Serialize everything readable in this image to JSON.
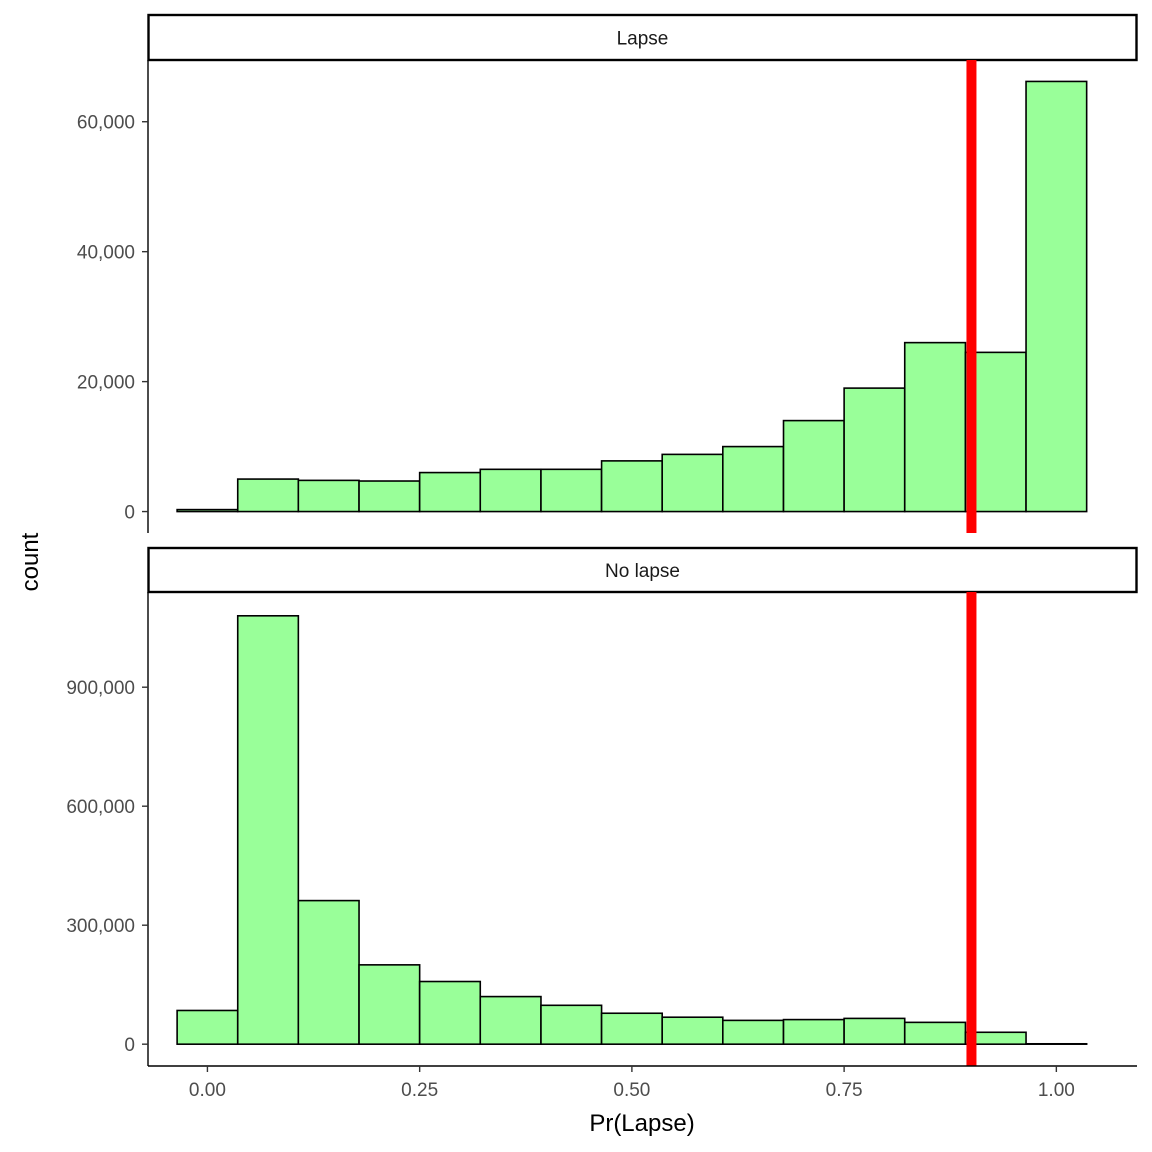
{
  "chart_data": {
    "type": "bar",
    "subtype": "faceted-histogram",
    "xlabel": "Pr(Lapse)",
    "ylabel": "count",
    "bar_fill": "#99ff99",
    "bar_stroke": "#000000",
    "threshold": {
      "x": 0.9,
      "color": "#ff0000"
    },
    "xlim": [
      -0.07,
      1.095
    ],
    "x_ticks": [
      0,
      0.25,
      0.5,
      0.75,
      1
    ],
    "x_tick_labels": [
      "0.00",
      "0.25",
      "0.50",
      "0.75",
      "1.00"
    ],
    "bin_edges": [
      -0.0357,
      0.0357,
      0.1071,
      0.1786,
      0.25,
      0.3214,
      0.3929,
      0.4643,
      0.5357,
      0.6071,
      0.6786,
      0.75,
      0.8214,
      0.8929,
      0.9643,
      1.0357
    ],
    "panels": [
      {
        "strip": "Lapse",
        "ylim": [
          -3300,
          69500
        ],
        "y_ticks": [
          0,
          20000,
          40000,
          60000
        ],
        "y_tick_labels": [
          "0",
          "20,000",
          "40,000",
          "60,000"
        ],
        "values": [
          300,
          5000,
          4800,
          4700,
          6000,
          6500,
          6500,
          7800,
          8800,
          10000,
          14000,
          19000,
          26000,
          24500,
          66200
        ]
      },
      {
        "strip": "No lapse",
        "ylim": [
          -55000,
          1140000
        ],
        "y_ticks": [
          0,
          300000,
          600000,
          900000
        ],
        "y_tick_labels": [
          "0",
          "300,000",
          "600,000",
          "900,000"
        ],
        "values": [
          85000,
          1080000,
          362000,
          200000,
          158000,
          120000,
          98000,
          78000,
          68000,
          60000,
          62000,
          65000,
          55000,
          30000,
          1000
        ]
      }
    ]
  }
}
